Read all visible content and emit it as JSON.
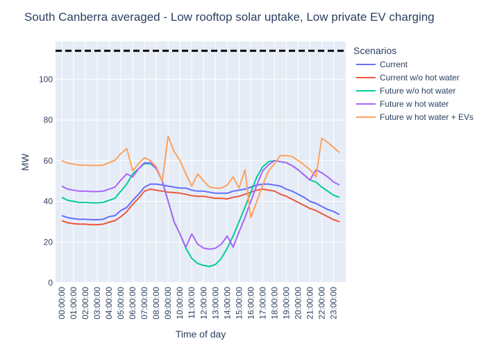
{
  "chart_data": {
    "type": "line",
    "title": "South Canberra averaged - Low rooftop solar uptake, Low private EV charging",
    "xlabel": "Time of day",
    "ylabel": "MW",
    "x_ticks": [
      "00:00:00",
      "01:00:00",
      "02:00:00",
      "03:00:00",
      "04:00:00",
      "05:00:00",
      "06:00:00",
      "07:00:00",
      "08:00:00",
      "09:00:00",
      "10:00:00",
      "11:00:00",
      "12:00:00",
      "13:00:00",
      "14:00:00",
      "15:00:00",
      "16:00:00",
      "17:00:00",
      "18:00:00",
      "19:00:00",
      "20:00:00",
      "21:00:00",
      "22:00:00",
      "23:00:00"
    ],
    "y_ticks": [
      0,
      20,
      40,
      60,
      80,
      100
    ],
    "ylim": [
      0,
      118.5
    ],
    "xlim_hours": [
      0,
      23.5
    ],
    "grid": true,
    "legend": {
      "title": "Scenarios",
      "position": "right"
    },
    "reference_line": {
      "y": 114,
      "style": "dashed",
      "color": "#000000"
    },
    "x_hours": [
      0,
      0.5,
      1,
      1.5,
      2,
      2.5,
      3,
      3.5,
      4,
      4.5,
      5,
      5.5,
      6,
      6.5,
      7,
      7.5,
      8,
      8.5,
      9,
      9.5,
      10,
      10.5,
      11,
      11.5,
      12,
      12.5,
      13,
      13.5,
      14,
      14.5,
      15,
      15.5,
      16,
      16.5,
      17,
      17.5,
      18,
      18.5,
      19,
      19.5,
      20,
      20.5,
      21,
      21.5,
      22,
      22.5,
      23,
      23.5
    ],
    "series": [
      {
        "name": "Current",
        "color": "#636efa",
        "values": [
          33,
          32,
          31.5,
          31.2,
          31.2,
          31,
          31,
          31.2,
          32.5,
          33,
          35.5,
          37,
          40.5,
          43.5,
          47,
          48.5,
          48.5,
          48,
          47.5,
          47,
          46.5,
          46.5,
          45.5,
          45,
          45,
          44.5,
          44,
          44,
          44,
          45,
          45.5,
          46,
          47,
          48,
          48.5,
          48.5,
          48,
          47.5,
          46,
          45,
          43.5,
          42,
          40,
          39,
          37.5,
          36,
          35,
          33.5
        ]
      },
      {
        "name": "Current w/o hot water",
        "color": "#ef553b",
        "values": [
          30.5,
          29.5,
          29,
          28.8,
          28.8,
          28.5,
          28.5,
          28.8,
          29.8,
          30.5,
          32.5,
          35,
          38.5,
          41.5,
          45,
          46,
          45.5,
          45,
          44.5,
          44.3,
          44,
          43.5,
          42.8,
          42.5,
          42.5,
          42,
          41.5,
          41.5,
          41.2,
          42,
          42.5,
          43.5,
          44.5,
          45.5,
          46,
          45.5,
          45,
          43.5,
          42.5,
          41,
          39.5,
          38,
          36.5,
          35.5,
          34,
          32.5,
          31,
          30
        ]
      },
      {
        "name": "Future w/o hot water",
        "color": "#00cc96",
        "values": [
          42,
          40.5,
          40,
          39.5,
          39.5,
          39.3,
          39.3,
          39.5,
          40.5,
          41.5,
          45,
          48.5,
          53.5,
          56,
          58.5,
          58.5,
          56,
          50,
          40,
          30,
          24,
          17,
          12,
          9.5,
          8.5,
          8,
          9,
          12,
          17,
          23,
          30,
          37,
          44.5,
          52,
          57,
          59.5,
          60,
          59.5,
          59,
          57.5,
          55.5,
          53,
          50.5,
          49.5,
          47,
          45,
          43,
          42
        ]
      },
      {
        "name": "Future w hot water",
        "color": "#ab63fa",
        "values": [
          47.5,
          46,
          45.5,
          45,
          45,
          44.8,
          44.8,
          45,
          46,
          47,
          50.5,
          53.5,
          52,
          56,
          59,
          59,
          56,
          50,
          40,
          30,
          24,
          17.5,
          24,
          19,
          17,
          16.5,
          17,
          19,
          23,
          17.5,
          25,
          32,
          40,
          48,
          55,
          58,
          60,
          59.5,
          59,
          57.5,
          55.5,
          53,
          50.5,
          55.5,
          54,
          52,
          49.5,
          48
        ]
      },
      {
        "name": "Future w hot water + EVs",
        "color": "#ffa15a",
        "values": [
          60,
          58.8,
          58.3,
          57.8,
          57.8,
          57.6,
          57.6,
          57.8,
          59,
          60.2,
          63.5,
          66,
          55,
          58.5,
          61.5,
          60,
          57,
          50,
          72,
          64.5,
          60,
          53.5,
          47.5,
          53.5,
          50,
          47,
          46.5,
          46.5,
          48,
          52,
          46.5,
          55.5,
          32,
          40,
          48,
          55,
          58.5,
          62.5,
          62.5,
          62,
          60,
          58,
          55.5,
          52,
          71,
          69,
          66.5,
          64
        ]
      }
    ]
  }
}
